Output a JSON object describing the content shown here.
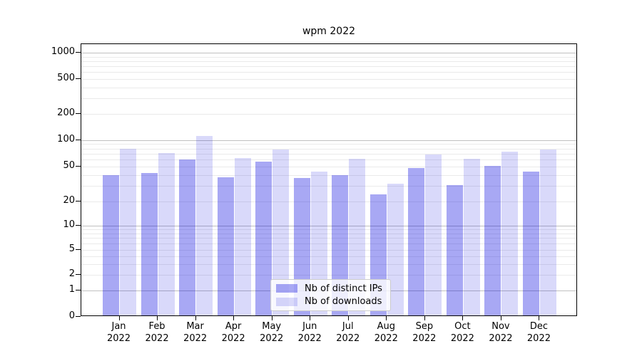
{
  "title": "wpm 2022",
  "legend": {
    "items": [
      {
        "label": "Nb of distinct IPs"
      },
      {
        "label": "Nb of downloads"
      }
    ]
  },
  "colors": {
    "distinct_ips": "rgba(0,0,224,0.34)",
    "downloads": "rgba(0,0,224,0.15)",
    "grid_major": "#c0c0c0",
    "grid_minor": "#eaeaea",
    "axis": "#000000"
  },
  "chart_data": {
    "type": "bar",
    "title": "wpm 2022",
    "categories": [
      "Jan",
      "Feb",
      "Mar",
      "Apr",
      "May",
      "Jun",
      "Jul",
      "Aug",
      "Sep",
      "Oct",
      "Nov",
      "Dec"
    ],
    "category_year": "2022",
    "series": [
      {
        "name": "Nb of distinct IPs",
        "values": [
          40,
          42,
          60,
          38,
          57,
          37,
          40,
          24,
          48,
          31,
          51,
          44
        ]
      },
      {
        "name": "Nb of downloads",
        "values": [
          80,
          71,
          110,
          62,
          78,
          44,
          61,
          32,
          68,
          61,
          74,
          78
        ]
      }
    ],
    "y_axis": {
      "scale": "symlog",
      "ticks": [
        1000,
        500,
        200,
        100,
        50,
        20,
        10,
        5,
        2,
        1,
        0
      ],
      "min": 0,
      "max": 1000
    },
    "grid": true,
    "legend_position": "lower center"
  }
}
